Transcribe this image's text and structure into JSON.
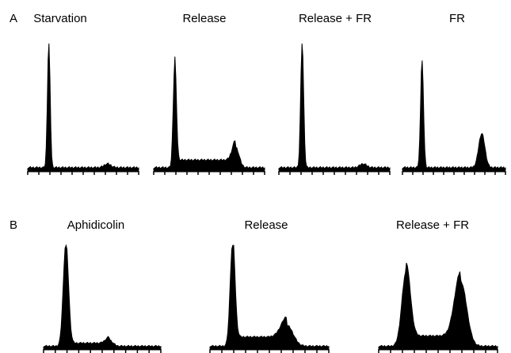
{
  "panels": [
    {
      "label": "A",
      "charts": [
        {
          "title": "Starvation"
        },
        {
          "title": "Release"
        },
        {
          "title": "Release + FR"
        },
        {
          "title": "FR"
        }
      ]
    },
    {
      "label": "B",
      "charts": [
        {
          "title": "Aphidicolin"
        },
        {
          "title": "Release"
        },
        {
          "title": "Release + FR"
        }
      ]
    }
  ],
  "chart_data": [
    {
      "panel": "A",
      "type": "area",
      "title": "Starvation",
      "xlabel": "",
      "ylabel": "",
      "grid": false,
      "x": [
        0,
        1,
        2,
        3,
        4,
        5,
        6,
        7,
        8,
        9,
        10
      ],
      "ylim": [
        0,
        100
      ],
      "series": [
        {
          "peaks": [
            {
              "center": 1.9,
              "height": 100,
              "width": 0.12
            },
            {
              "center": 7.2,
              "height": 3,
              "width": 0.3
            }
          ],
          "baseline": 2
        }
      ]
    },
    {
      "panel": "A",
      "type": "area",
      "title": "Release",
      "xlabel": "",
      "ylabel": "",
      "grid": false,
      "x": [
        0,
        1,
        2,
        3,
        4,
        5,
        6,
        7,
        8,
        9,
        10
      ],
      "ylim": [
        0,
        100
      ],
      "series": [
        {
          "peaks": [
            {
              "center": 1.9,
              "height": 82,
              "width": 0.14
            },
            {
              "center": 7.4,
              "height": 16,
              "width": 0.3
            }
          ],
          "baseline": 2,
          "plateau": 6
        }
      ]
    },
    {
      "panel": "A",
      "type": "area",
      "title": "Release + FR",
      "xlabel": "",
      "ylabel": "",
      "grid": false,
      "x": [
        0,
        1,
        2,
        3,
        4,
        5,
        6,
        7,
        8,
        9,
        10
      ],
      "ylim": [
        0,
        100
      ],
      "series": [
        {
          "peaks": [
            {
              "center": 2.1,
              "height": 100,
              "width": 0.13
            },
            {
              "center": 7.6,
              "height": 3,
              "width": 0.3
            }
          ],
          "baseline": 2
        }
      ]
    },
    {
      "panel": "A",
      "type": "area",
      "title": "FR",
      "xlabel": "",
      "ylabel": "",
      "grid": false,
      "x": [
        0,
        1,
        2,
        3,
        4,
        5,
        6,
        7,
        8,
        9,
        10
      ],
      "ylim": [
        0,
        100
      ],
      "series": [
        {
          "peaks": [
            {
              "center": 1.9,
              "height": 85,
              "width": 0.14
            },
            {
              "center": 7.7,
              "height": 27,
              "width": 0.3
            }
          ],
          "baseline": 2
        }
      ]
    },
    {
      "panel": "B",
      "type": "area",
      "title": "Aphidicolin",
      "xlabel": "",
      "ylabel": "",
      "grid": false,
      "x": [
        0,
        1,
        2,
        3,
        4,
        5,
        6,
        7,
        8,
        9,
        10
      ],
      "ylim": [
        0,
        100
      ],
      "series": [
        {
          "peaks": [
            {
              "center": 1.9,
              "height": 100,
              "width": 0.22
            },
            {
              "center": 5.6,
              "height": 6,
              "width": 0.3
            }
          ],
          "baseline": 2,
          "plateau": 3
        }
      ]
    },
    {
      "panel": "B",
      "type": "area",
      "title": "Release",
      "xlabel": "",
      "ylabel": "",
      "grid": false,
      "x": [
        0,
        1,
        2,
        3,
        4,
        5,
        6,
        7,
        8,
        9,
        10
      ],
      "ylim": [
        0,
        100
      ],
      "series": [
        {
          "peaks": [
            {
              "center": 1.9,
              "height": 100,
              "width": 0.2
            },
            {
              "center": 6.5,
              "height": 20,
              "width": 0.5
            }
          ],
          "baseline": 2,
          "plateau": 9
        }
      ]
    },
    {
      "panel": "B",
      "type": "area",
      "title": "Release + FR",
      "xlabel": "",
      "ylabel": "",
      "grid": false,
      "x": [
        0,
        1,
        2,
        3,
        4,
        5,
        6,
        7,
        8,
        9,
        10
      ],
      "ylim": [
        0,
        100
      ],
      "series": [
        {
          "peaks": [
            {
              "center": 2.3,
              "height": 72,
              "width": 0.35
            },
            {
              "center": 6.9,
              "height": 63,
              "width": 0.5
            }
          ],
          "baseline": 2,
          "plateau": 10
        }
      ]
    }
  ]
}
